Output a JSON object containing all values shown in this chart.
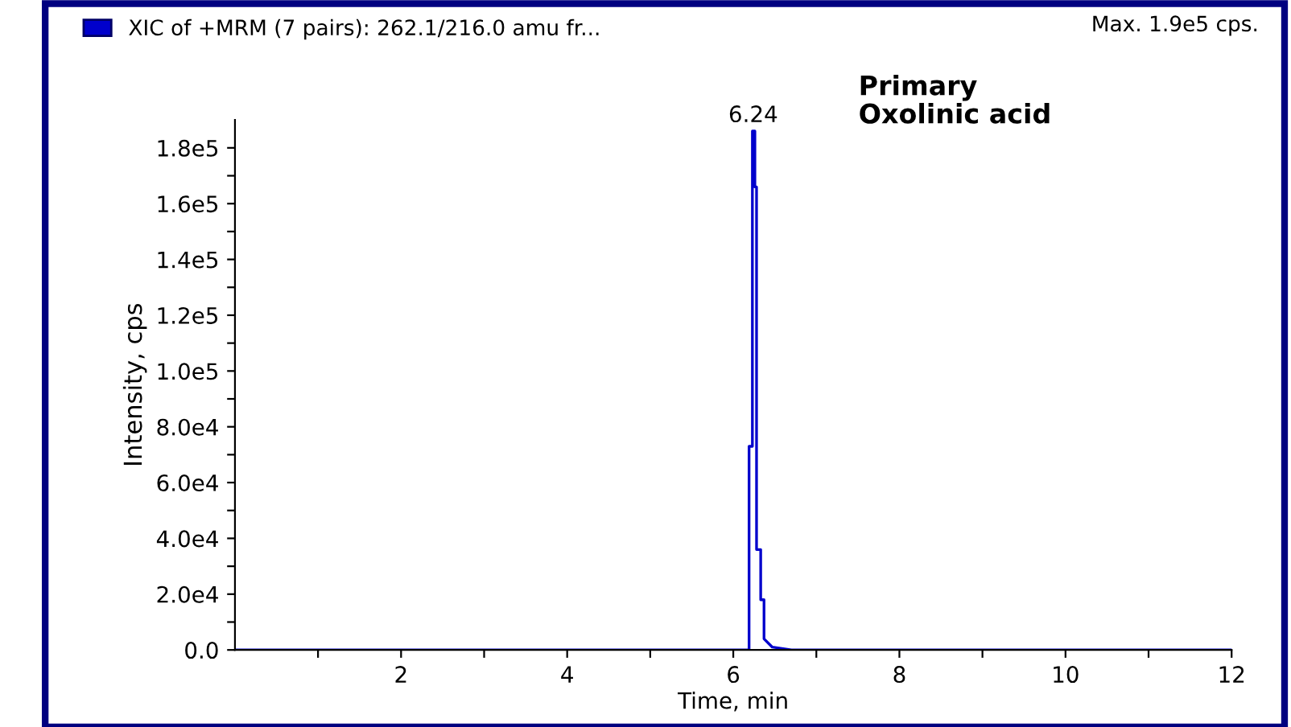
{
  "chart_data": {
    "type": "line",
    "xlabel": "Time, min",
    "ylabel": "Intensity, cps",
    "legend": "top left",
    "grid": false,
    "marker": "none",
    "line_style": "solid",
    "series": [
      {
        "name": "XIC of +MRM (7 pairs): 262.1/216.0 amu fr...",
        "color": "#0000cc",
        "x": [
          0.0,
          6.19,
          6.19,
          6.23,
          6.23,
          6.26,
          6.26,
          6.28,
          6.28,
          6.33,
          6.33,
          6.37,
          6.37,
          6.47,
          6.7,
          12.0
        ],
        "values": [
          0,
          0,
          73000,
          73000,
          186000,
          186000,
          166000,
          166000,
          36000,
          36000,
          18000,
          18000,
          4000,
          1000,
          0,
          0
        ]
      }
    ],
    "xlim": [
      0,
      12
    ],
    "xticks": [
      {
        "value": 1,
        "label": null
      },
      2,
      {
        "value": 3,
        "label": null
      },
      4,
      {
        "value": 5,
        "label": null
      },
      6,
      {
        "value": 7,
        "label": null
      },
      8,
      {
        "value": 9,
        "label": null
      },
      10,
      {
        "value": 11,
        "label": null
      },
      12
    ],
    "ylim": [
      0,
      190000
    ],
    "yticks": [
      {
        "value": 0,
        "label": "0.0"
      },
      {
        "value": 10000,
        "label": null
      },
      {
        "value": 20000,
        "label": "2.0e4"
      },
      {
        "value": 30000,
        "label": null
      },
      {
        "value": 40000,
        "label": "4.0e4"
      },
      {
        "value": 50000,
        "label": null
      },
      {
        "value": 60000,
        "label": "6.0e4"
      },
      {
        "value": 70000,
        "label": null
      },
      {
        "value": 80000,
        "label": "8.0e4"
      },
      {
        "value": 90000,
        "label": null
      },
      {
        "value": 100000,
        "label": "1.0e5"
      },
      {
        "value": 110000,
        "label": null
      },
      {
        "value": 120000,
        "label": "1.2e5"
      },
      {
        "value": 130000,
        "label": null
      },
      {
        "value": 140000,
        "label": "1.4e5"
      },
      {
        "value": 150000,
        "label": null
      },
      {
        "value": 160000,
        "label": "1.6e5"
      },
      {
        "value": 170000,
        "label": null
      },
      {
        "value": 180000,
        "label": "1.8e5"
      }
    ],
    "annotations": [
      {
        "text": "6.24",
        "x": 6.24,
        "y": 186000
      },
      "Max. 1.9e5 cps.",
      "Primary\nOxolinic acid"
    ]
  }
}
